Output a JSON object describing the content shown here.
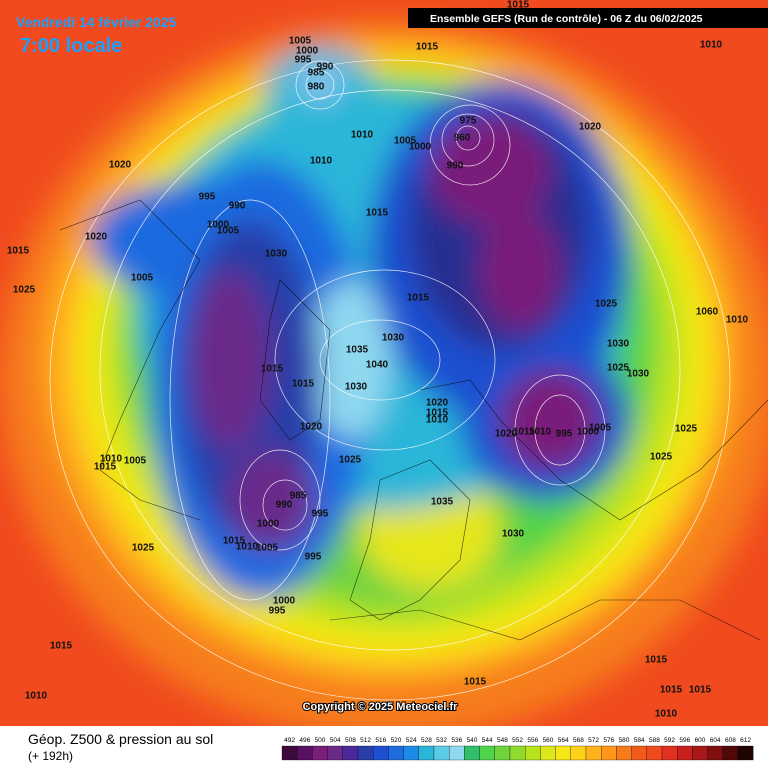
{
  "header": {
    "date": "Vendredi 14 février 2025",
    "time": "7:00 locale",
    "model": "Ensemble GEFS  (Run de contrôle)  -  06 Z du 06/02/2025"
  },
  "copyright": "Copyright © 2025 Meteociel.fr",
  "footer": {
    "title": "Géop. Z500 & pression au sol",
    "lead": "(+ 192h)"
  },
  "legend": [
    492,
    496,
    500,
    504,
    508,
    512,
    516,
    520,
    524,
    528,
    532,
    536,
    540,
    544,
    548,
    552,
    556,
    560,
    564,
    568,
    572,
    576,
    580,
    584,
    588,
    592,
    596,
    600,
    604,
    608,
    612
  ],
  "isobar_labels": [
    "1015",
    "1005",
    "1000",
    "995",
    "990",
    "985",
    "980",
    "1015",
    "1010",
    "975",
    "1005",
    "1000",
    "960",
    "990",
    "1020",
    "1010",
    "1010",
    "1020",
    "995",
    "990",
    "1015",
    "1000",
    "1005",
    "1020",
    "1015",
    "1030",
    "1025",
    "1005",
    "1015",
    "1025",
    "1030",
    "1035",
    "1040",
    "1030",
    "1025",
    "1030",
    "1060",
    "1010",
    "1015",
    "1015",
    "1030",
    "1020",
    "1015",
    "1010",
    "1020",
    "1020",
    "1015",
    "1010",
    "995",
    "1000",
    "1005",
    "1025",
    "1025",
    "1025",
    "1010",
    "1005",
    "1015",
    "1035",
    "985",
    "990",
    "995",
    "1000",
    "1015",
    "1010",
    "1005",
    "1030",
    "1025",
    "995",
    "1000",
    "995",
    "1015",
    "1015",
    "1015",
    "1015",
    "1015",
    "1010",
    "1010"
  ]
}
